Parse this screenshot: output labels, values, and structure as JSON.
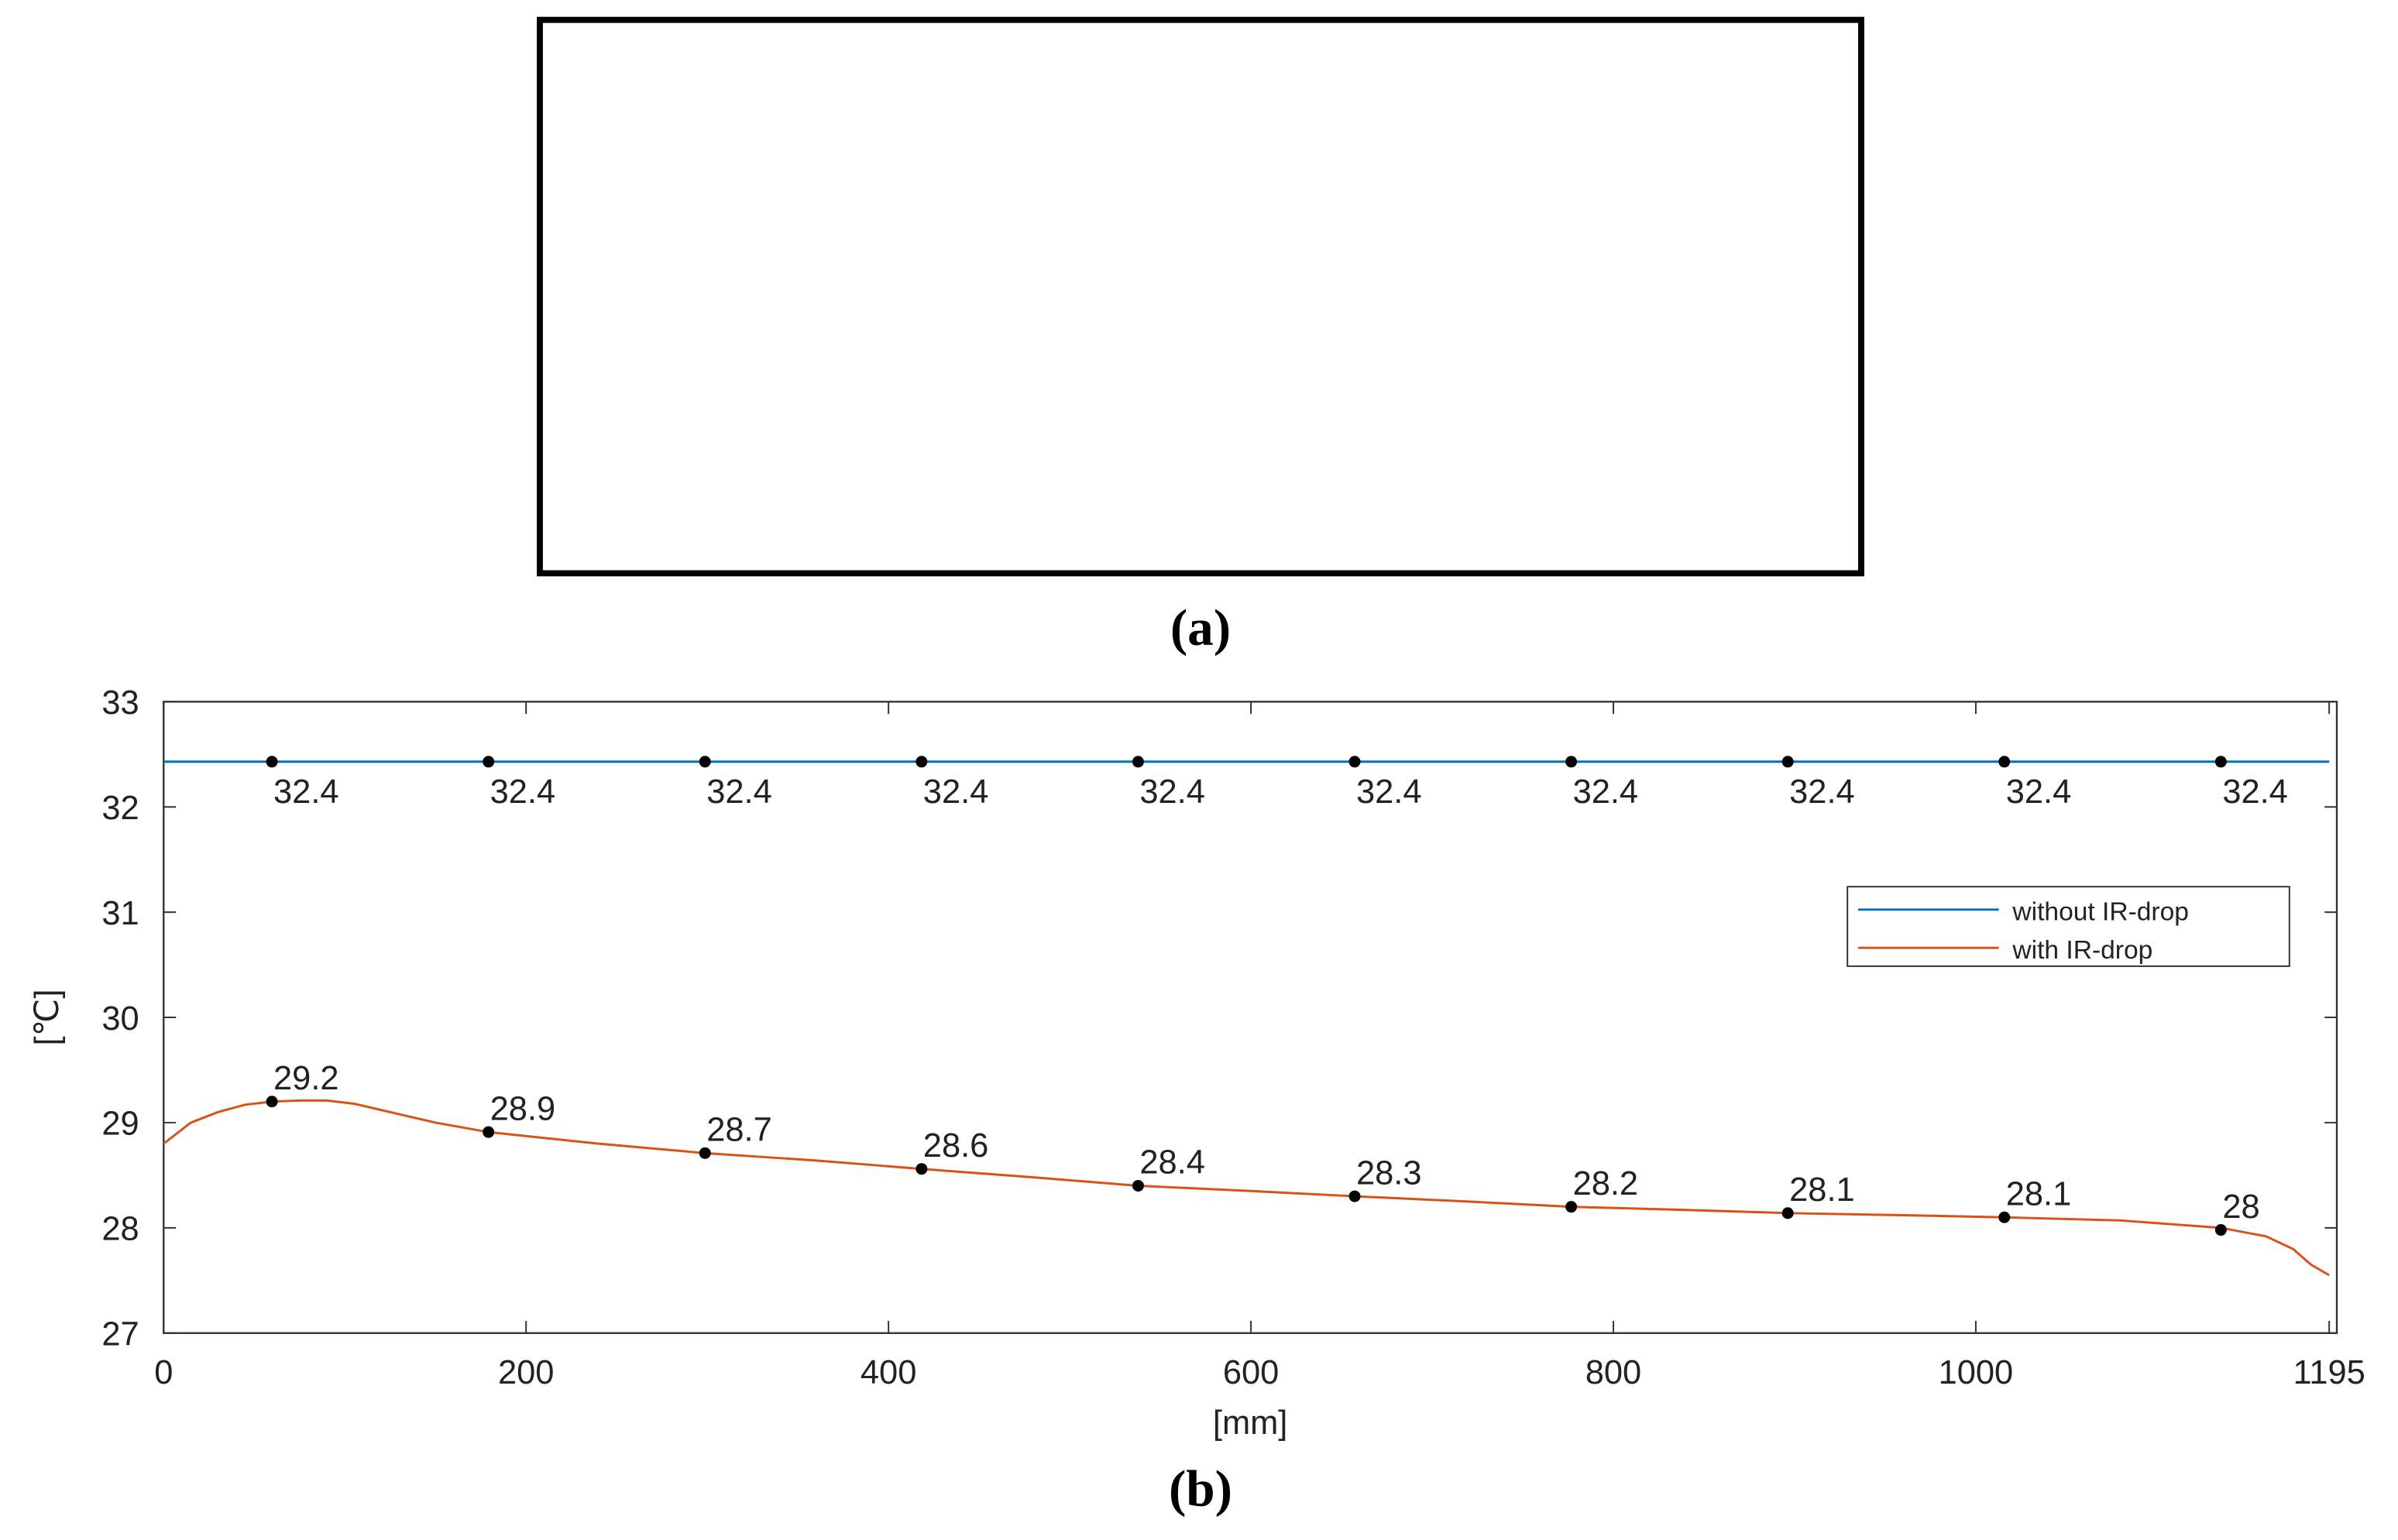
{
  "panel_a": {
    "caption": "(a)"
  },
  "chart_data": {
    "type": "line",
    "caption": "(b)",
    "xlabel": "[mm]",
    "ylabel": "[℃]",
    "xlim": [
      0,
      1195
    ],
    "xticks": [
      0,
      200,
      400,
      600,
      800,
      1000,
      1195
    ],
    "ylim": [
      27,
      33
    ],
    "yticks": [
      27,
      28,
      29,
      30,
      31,
      32,
      33
    ],
    "legend": "upper right",
    "series": [
      {
        "name": "without IR-drop",
        "color": "#0072bd",
        "x": [
          0,
          1195
        ],
        "values": [
          32.43,
          32.43
        ],
        "markers": {
          "x": [
            59.75,
            179.25,
            298.75,
            418.25,
            537.75,
            657.25,
            776.75,
            896.25,
            1015.75,
            1135.25
          ],
          "values": [
            32.43,
            32.43,
            32.43,
            32.43,
            32.43,
            32.43,
            32.43,
            32.43,
            32.43,
            32.43
          ],
          "value_labels": [
            "32.4",
            "32.4",
            "32.4",
            "32.4",
            "32.4",
            "32.4",
            "32.4",
            "32.4",
            "32.4",
            "32.4"
          ]
        }
      },
      {
        "name": "with IR-drop",
        "color": "#d95319",
        "x": [
          0,
          15,
          30,
          45,
          59.75,
          75,
          90,
          105,
          120,
          150,
          179.25,
          240,
          298.75,
          360,
          418.25,
          480,
          537.75,
          600,
          657.25,
          720,
          776.75,
          840,
          896.25,
          960,
          1015.75,
          1080,
          1135.25,
          1160,
          1175,
          1185,
          1195
        ],
        "values": [
          28.8,
          29.0,
          29.1,
          29.17,
          29.2,
          29.21,
          29.21,
          29.18,
          29.12,
          29.0,
          28.91,
          28.8,
          28.71,
          28.64,
          28.56,
          28.48,
          28.4,
          28.35,
          28.3,
          28.25,
          28.2,
          28.17,
          28.14,
          28.12,
          28.1,
          28.07,
          28.0,
          27.92,
          27.8,
          27.65,
          27.55
        ],
        "markers": {
          "x": [
            59.75,
            179.25,
            298.75,
            418.25,
            537.75,
            657.25,
            776.75,
            896.25,
            1015.75,
            1135.25
          ],
          "values": [
            29.2,
            28.91,
            28.71,
            28.56,
            28.4,
            28.3,
            28.2,
            28.14,
            28.1,
            27.98
          ],
          "value_labels": [
            "29.2",
            "28.9",
            "28.7",
            "28.6",
            "28.4",
            "28.3",
            "28.2",
            "28.1",
            "28.1",
            "28"
          ]
        }
      }
    ]
  }
}
